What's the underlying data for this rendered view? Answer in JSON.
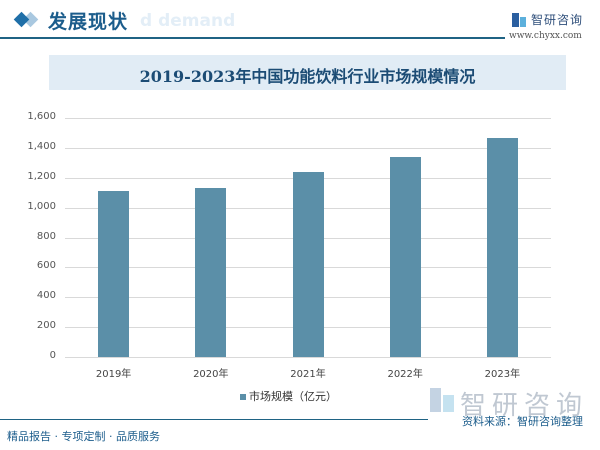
{
  "header": {
    "section_title": "发展现状",
    "ghost_text": "d demand",
    "logo_name": "智研咨询",
    "logo_url": "www.chyxx.com"
  },
  "chart_title": "2019-2023年中国功能饮料行业市场规模情况",
  "legend": {
    "label": "市场规模（亿元）"
  },
  "source": "资料来源：智研咨询整理",
  "footer": "精品报告 · 专项定制 · 品质服务",
  "watermark": "智研咨询",
  "colors": {
    "bar": "#5b8fa8",
    "title_bar": "#e1ecf5",
    "accent": "#1c5d8c"
  },
  "y_ticks": [
    "0",
    "200",
    "400",
    "600",
    "800",
    "1,000",
    "1,200",
    "1,400",
    "1,600"
  ],
  "chart_data": {
    "type": "bar",
    "title": "2019-2023年中国功能饮料行业市场规模情况",
    "categories": [
      "2019年",
      "2020年",
      "2021年",
      "2022年",
      "2023年"
    ],
    "series": [
      {
        "name": "市场规模（亿元）",
        "values": [
          1110,
          1130,
          1237,
          1338,
          1465
        ]
      }
    ],
    "xlabel": "",
    "ylabel": "",
    "ylim": [
      0,
      1600
    ],
    "yticks": [
      0,
      200,
      400,
      600,
      800,
      1000,
      1200,
      1400,
      1600
    ],
    "grid": true,
    "legend_position": "bottom"
  }
}
